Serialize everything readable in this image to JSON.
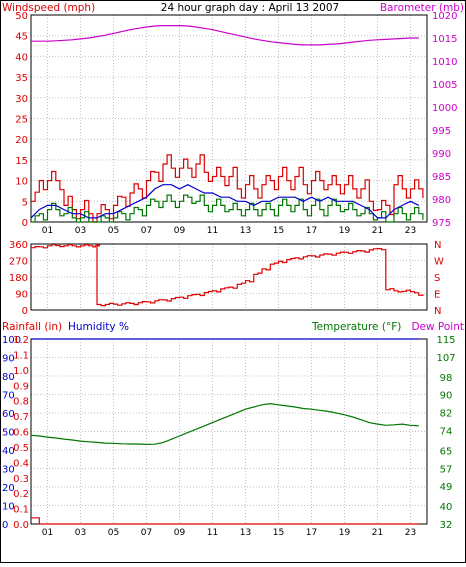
{
  "header": {
    "left_label": "Windspeed (mph)",
    "center_title": "24 hour graph day : April 13 2007",
    "right_label": "Barometer (mb)"
  },
  "lower_header": {
    "rainfall_label": "Rainfall (in)",
    "humidity_label": "Humidity %",
    "temperature_label": "Temperature (°F)",
    "dewpoint_label": "Dew Point"
  },
  "colors": {
    "red": "#dd0000",
    "green": "#007700",
    "blue": "#0000cc",
    "magenta": "#cc00cc",
    "grid": "#c0c0c0"
  },
  "x_ticks": [
    "01",
    "03",
    "05",
    "07",
    "09",
    "11",
    "13",
    "15",
    "17",
    "19",
    "21",
    "23"
  ],
  "chart_data": [
    {
      "type": "line",
      "title": "24 hour graph day : April 13 2007",
      "x": [
        0,
        0.5,
        1,
        1.5,
        2,
        2.5,
        3,
        3.5,
        4,
        4.5,
        5,
        5.5,
        6,
        6.5,
        7,
        7.5,
        8,
        8.5,
        9,
        9.5,
        10,
        10.5,
        11,
        11.5,
        12,
        12.5,
        13,
        13.5,
        14,
        14.5,
        15,
        15.5,
        16,
        16.5,
        17,
        17.5,
        18,
        18.5,
        19,
        19.5,
        20,
        20.5,
        21,
        21.5,
        22,
        22.5,
        23,
        23.5
      ],
      "y_left": {
        "label": "Windspeed (mph)",
        "ylim": [
          0,
          50
        ],
        "ticks": [
          0,
          5,
          10,
          15,
          20,
          25,
          30,
          35,
          40,
          45,
          50
        ]
      },
      "y_right": {
        "label": "Barometer (mb)",
        "ylim": [
          975,
          1020
        ],
        "ticks": [
          975,
          980,
          985,
          990,
          995,
          1000,
          1005,
          1010,
          1015,
          1020
        ]
      },
      "series": [
        {
          "name": "Windspeed (mph)",
          "color": "#dd0000",
          "values": [
            5,
            10,
            10,
            10,
            4,
            3,
            3,
            2,
            2,
            3,
            4,
            6,
            7,
            8,
            10,
            12,
            14,
            13,
            13,
            13,
            14,
            12,
            11,
            11,
            11,
            8,
            9,
            8,
            9,
            10,
            11,
            10,
            11,
            9,
            10,
            10,
            9,
            9,
            9,
            8,
            8,
            5,
            3,
            4,
            9,
            8,
            8,
            8
          ]
        },
        {
          "name": "Windspeed (mph)",
          "color": "#0000cc",
          "values": [
            1,
            3,
            4,
            4,
            3,
            2,
            2,
            1,
            1,
            2,
            2,
            3,
            4,
            5,
            6,
            8,
            9,
            9,
            8,
            9,
            8,
            7,
            7,
            6,
            6,
            5,
            5,
            4,
            5,
            5,
            6,
            6,
            6,
            5,
            6,
            5,
            6,
            5,
            5,
            5,
            4,
            3,
            1,
            1,
            3,
            4,
            5,
            4
          ]
        },
        {
          "name": "Windspeed (mph)",
          "color": "#007700",
          "values": [
            0,
            2,
            3,
            3,
            2,
            1,
            1,
            0,
            0,
            1,
            1,
            2,
            2,
            3,
            4,
            5,
            5,
            5,
            5,
            6,
            5,
            4,
            4,
            4,
            3,
            3,
            3,
            3,
            3,
            3,
            4,
            4,
            4,
            3,
            4,
            3,
            4,
            4,
            3,
            3,
            2,
            2,
            1,
            0,
            2,
            2,
            2,
            2
          ]
        },
        {
          "name": "Barometer (mb)",
          "axis": "right",
          "color": "#cc00cc",
          "values": [
            1014.3,
            1014.3,
            1014.3,
            1014.4,
            1014.5,
            1014.6,
            1014.8,
            1015.0,
            1015.3,
            1015.6,
            1016.0,
            1016.4,
            1016.8,
            1017.1,
            1017.4,
            1017.6,
            1017.7,
            1017.7,
            1017.7,
            1017.6,
            1017.4,
            1017.1,
            1016.8,
            1016.4,
            1016.0,
            1015.6,
            1015.2,
            1014.8,
            1014.5,
            1014.2,
            1014.0,
            1013.8,
            1013.6,
            1013.5,
            1013.5,
            1013.5,
            1013.6,
            1013.7,
            1013.9,
            1014.1,
            1014.3,
            1014.5,
            1014.6,
            1014.7,
            1014.8,
            1014.9,
            1015.0,
            1015.0
          ]
        }
      ]
    },
    {
      "type": "line",
      "title": "",
      "x": [
        0,
        0.5,
        1,
        1.5,
        2,
        2.5,
        3,
        3.5,
        3.9,
        4,
        4.5,
        5,
        5.5,
        6,
        6.5,
        7,
        7.5,
        8,
        8.5,
        9,
        9.5,
        10,
        10.5,
        11,
        11.5,
        12,
        12.5,
        13,
        13.5,
        14,
        14.5,
        15,
        15.5,
        16,
        16.5,
        17,
        17.5,
        18,
        18.5,
        19,
        19.5,
        20,
        20.5,
        21,
        21.5,
        22,
        22.5,
        23,
        23.5
      ],
      "y_left": {
        "ylim": [
          0,
          360
        ],
        "ticks": [
          0,
          90,
          180,
          270,
          360
        ]
      },
      "y_right_labels": [
        "N",
        "W",
        "S",
        "E",
        "N"
      ],
      "series": [
        {
          "name": "",
          "color": "#dd0000",
          "values": [
            340,
            345,
            350,
            352,
            350,
            350,
            350,
            350,
            350,
            30,
            30,
            32,
            34,
            36,
            40,
            45,
            50,
            55,
            62,
            70,
            78,
            85,
            95,
            105,
            115,
            125,
            140,
            160,
            195,
            225,
            250,
            265,
            275,
            285,
            290,
            295,
            300,
            305,
            310,
            315,
            318,
            322,
            328,
            335,
            110,
            105,
            102,
            100,
            80
          ]
        }
      ]
    },
    {
      "type": "line",
      "title": "",
      "x": [
        0,
        0.5,
        1,
        1.5,
        2,
        2.5,
        3,
        3.5,
        4,
        4.5,
        5,
        5.5,
        6,
        6.5,
        7,
        7.5,
        8,
        8.5,
        9,
        9.5,
        10,
        10.5,
        11,
        11.5,
        12,
        12.5,
        13,
        13.5,
        14,
        14.5,
        15,
        15.5,
        16,
        16.5,
        17,
        17.5,
        18,
        18.5,
        19,
        19.5,
        20,
        20.5,
        21,
        21.5,
        22,
        22.5,
        23,
        23.5
      ],
      "y_left": {
        "label": "Rainfall (in)",
        "ylim": [
          0,
          1.2
        ],
        "ticks": [
          0.0,
          0.1,
          0.2,
          0.3,
          0.4,
          0.5,
          0.6,
          0.7,
          0.8,
          0.9,
          1.0,
          1.1,
          1.2
        ]
      },
      "y_left2": {
        "label": "Humidity %",
        "ylim": [
          0,
          100
        ],
        "ticks": [
          0,
          10,
          20,
          30,
          40,
          50,
          60,
          70,
          80,
          90,
          100
        ]
      },
      "y_right": {
        "label": "Temperature (°F)",
        "ylim": [
          32,
          115
        ],
        "ticks": [
          32,
          40,
          49,
          57,
          65,
          74,
          82,
          90,
          98,
          107,
          115
        ]
      },
      "series": [
        {
          "name": "Temperature (°F)",
          "axis": "right",
          "color": "#007700",
          "values": [
            71.8,
            71.5,
            71.0,
            70.6,
            70.1,
            69.7,
            69.2,
            68.9,
            68.6,
            68.3,
            68.2,
            68.0,
            67.9,
            67.9,
            67.7,
            67.8,
            68.5,
            70.0,
            71.5,
            73.0,
            74.5,
            76.0,
            77.5,
            79.0,
            80.5,
            82.0,
            83.5,
            84.5,
            85.5,
            86.0,
            85.5,
            85.0,
            84.5,
            83.8,
            83.5,
            83.0,
            82.5,
            81.8,
            81.0,
            80.0,
            78.8,
            77.5,
            76.8,
            76.3,
            76.5,
            76.8,
            76.3,
            76.0
          ]
        },
        {
          "name": "Rainfall (in)",
          "color": "#dd0000",
          "values": [
            0.04,
            0.0,
            0.0,
            0.0,
            0.0,
            0.0,
            0.0,
            0.0,
            0.0,
            0.0,
            0.0,
            0.0,
            0.0,
            0.0,
            0.0,
            0.0,
            0.0,
            0.0,
            0.0,
            0.0,
            0.0,
            0.0,
            0.0,
            0.0,
            0.0,
            0.0,
            0.0,
            0.0,
            0.0,
            0.0,
            0.0,
            0.0,
            0.0,
            0.0,
            0.0,
            0.0,
            0.0,
            0.0,
            0.0,
            0.0,
            0.0,
            0.0,
            0.0,
            0.0,
            0.0,
            0.0,
            0.0,
            0.0
          ]
        },
        {
          "name": "Humidity %",
          "color": "#0000cc",
          "values": [
            100,
            100,
            100,
            100,
            100,
            100,
            100,
            100,
            100,
            100,
            100,
            100,
            100,
            100,
            100,
            100,
            100,
            100,
            100,
            100,
            100,
            100,
            100,
            100,
            100,
            100,
            100,
            100,
            100,
            100,
            100,
            100,
            100,
            100,
            100,
            100,
            100,
            100,
            100,
            100,
            100,
            100,
            100,
            100,
            100,
            100,
            100,
            100
          ]
        }
      ]
    }
  ]
}
